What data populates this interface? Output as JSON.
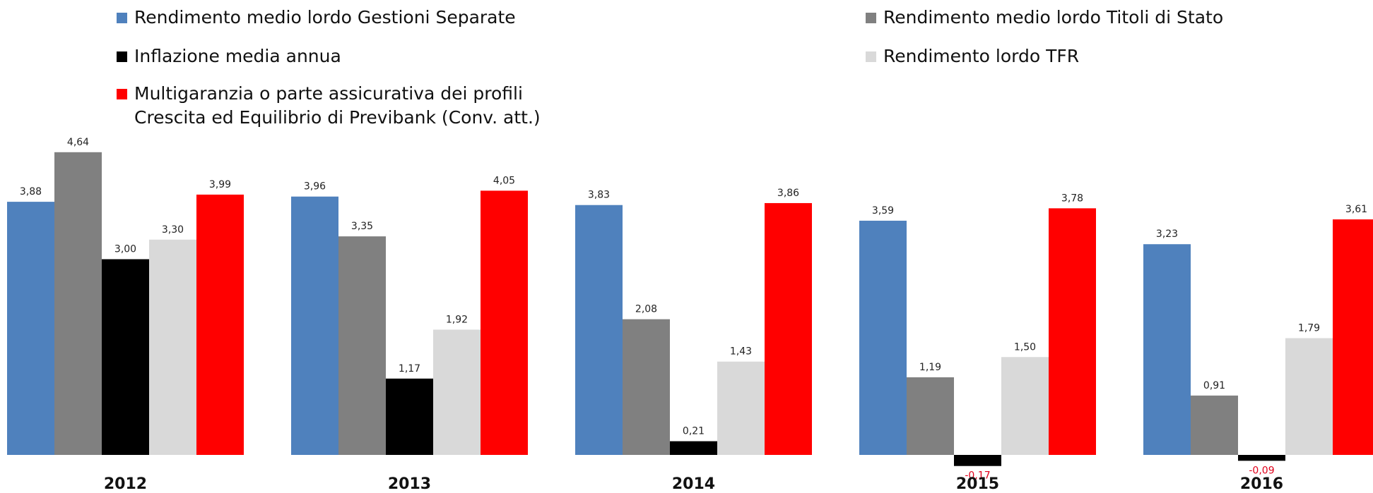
{
  "chart_data": {
    "type": "bar",
    "title": "",
    "xlabel": "",
    "ylabel": "",
    "categories": [
      "2012",
      "2013",
      "2014",
      "2015",
      "2016"
    ],
    "series": [
      {
        "name": "Rendimento medio lordo Gestioni Separate",
        "color": "#4f81bd",
        "values": [
          3.88,
          3.96,
          3.83,
          3.59,
          3.23
        ],
        "labels": [
          "3,88",
          "3,96",
          "3,83",
          "3,59",
          "3,23"
        ]
      },
      {
        "name": "Rendimento medio lordo Titoli di Stato",
        "color": "#808080",
        "values": [
          4.64,
          3.35,
          2.08,
          1.19,
          0.91
        ],
        "labels": [
          "4,64",
          "3,35",
          "2,08",
          "1,19",
          "0,91"
        ]
      },
      {
        "name": "Inflazione media annua",
        "color": "#000000",
        "values": [
          3.0,
          1.17,
          0.21,
          -0.17,
          -0.09
        ],
        "labels": [
          "3,00",
          "1,17",
          "0,21",
          "-0,17",
          "-0,09"
        ]
      },
      {
        "name": "Rendimento lordo TFR",
        "color": "#d9d9d9",
        "values": [
          3.3,
          1.92,
          1.43,
          1.5,
          1.79
        ],
        "labels": [
          "3,30",
          "1,92",
          "1,43",
          "1,50",
          "1,79"
        ]
      },
      {
        "name": "Multigaranzia o parte assicurativa dei profili\nCrescita ed Equilibrio di Previbank (Conv. att.)",
        "color": "#ff0000",
        "values": [
          3.99,
          4.05,
          3.86,
          3.78,
          3.61
        ],
        "labels": [
          "3,99",
          "4,05",
          "3,86",
          "3,78",
          "3,61"
        ]
      }
    ],
    "legend": "top",
    "grid": false,
    "ylim": [
      -0.2,
      4.7
    ]
  }
}
